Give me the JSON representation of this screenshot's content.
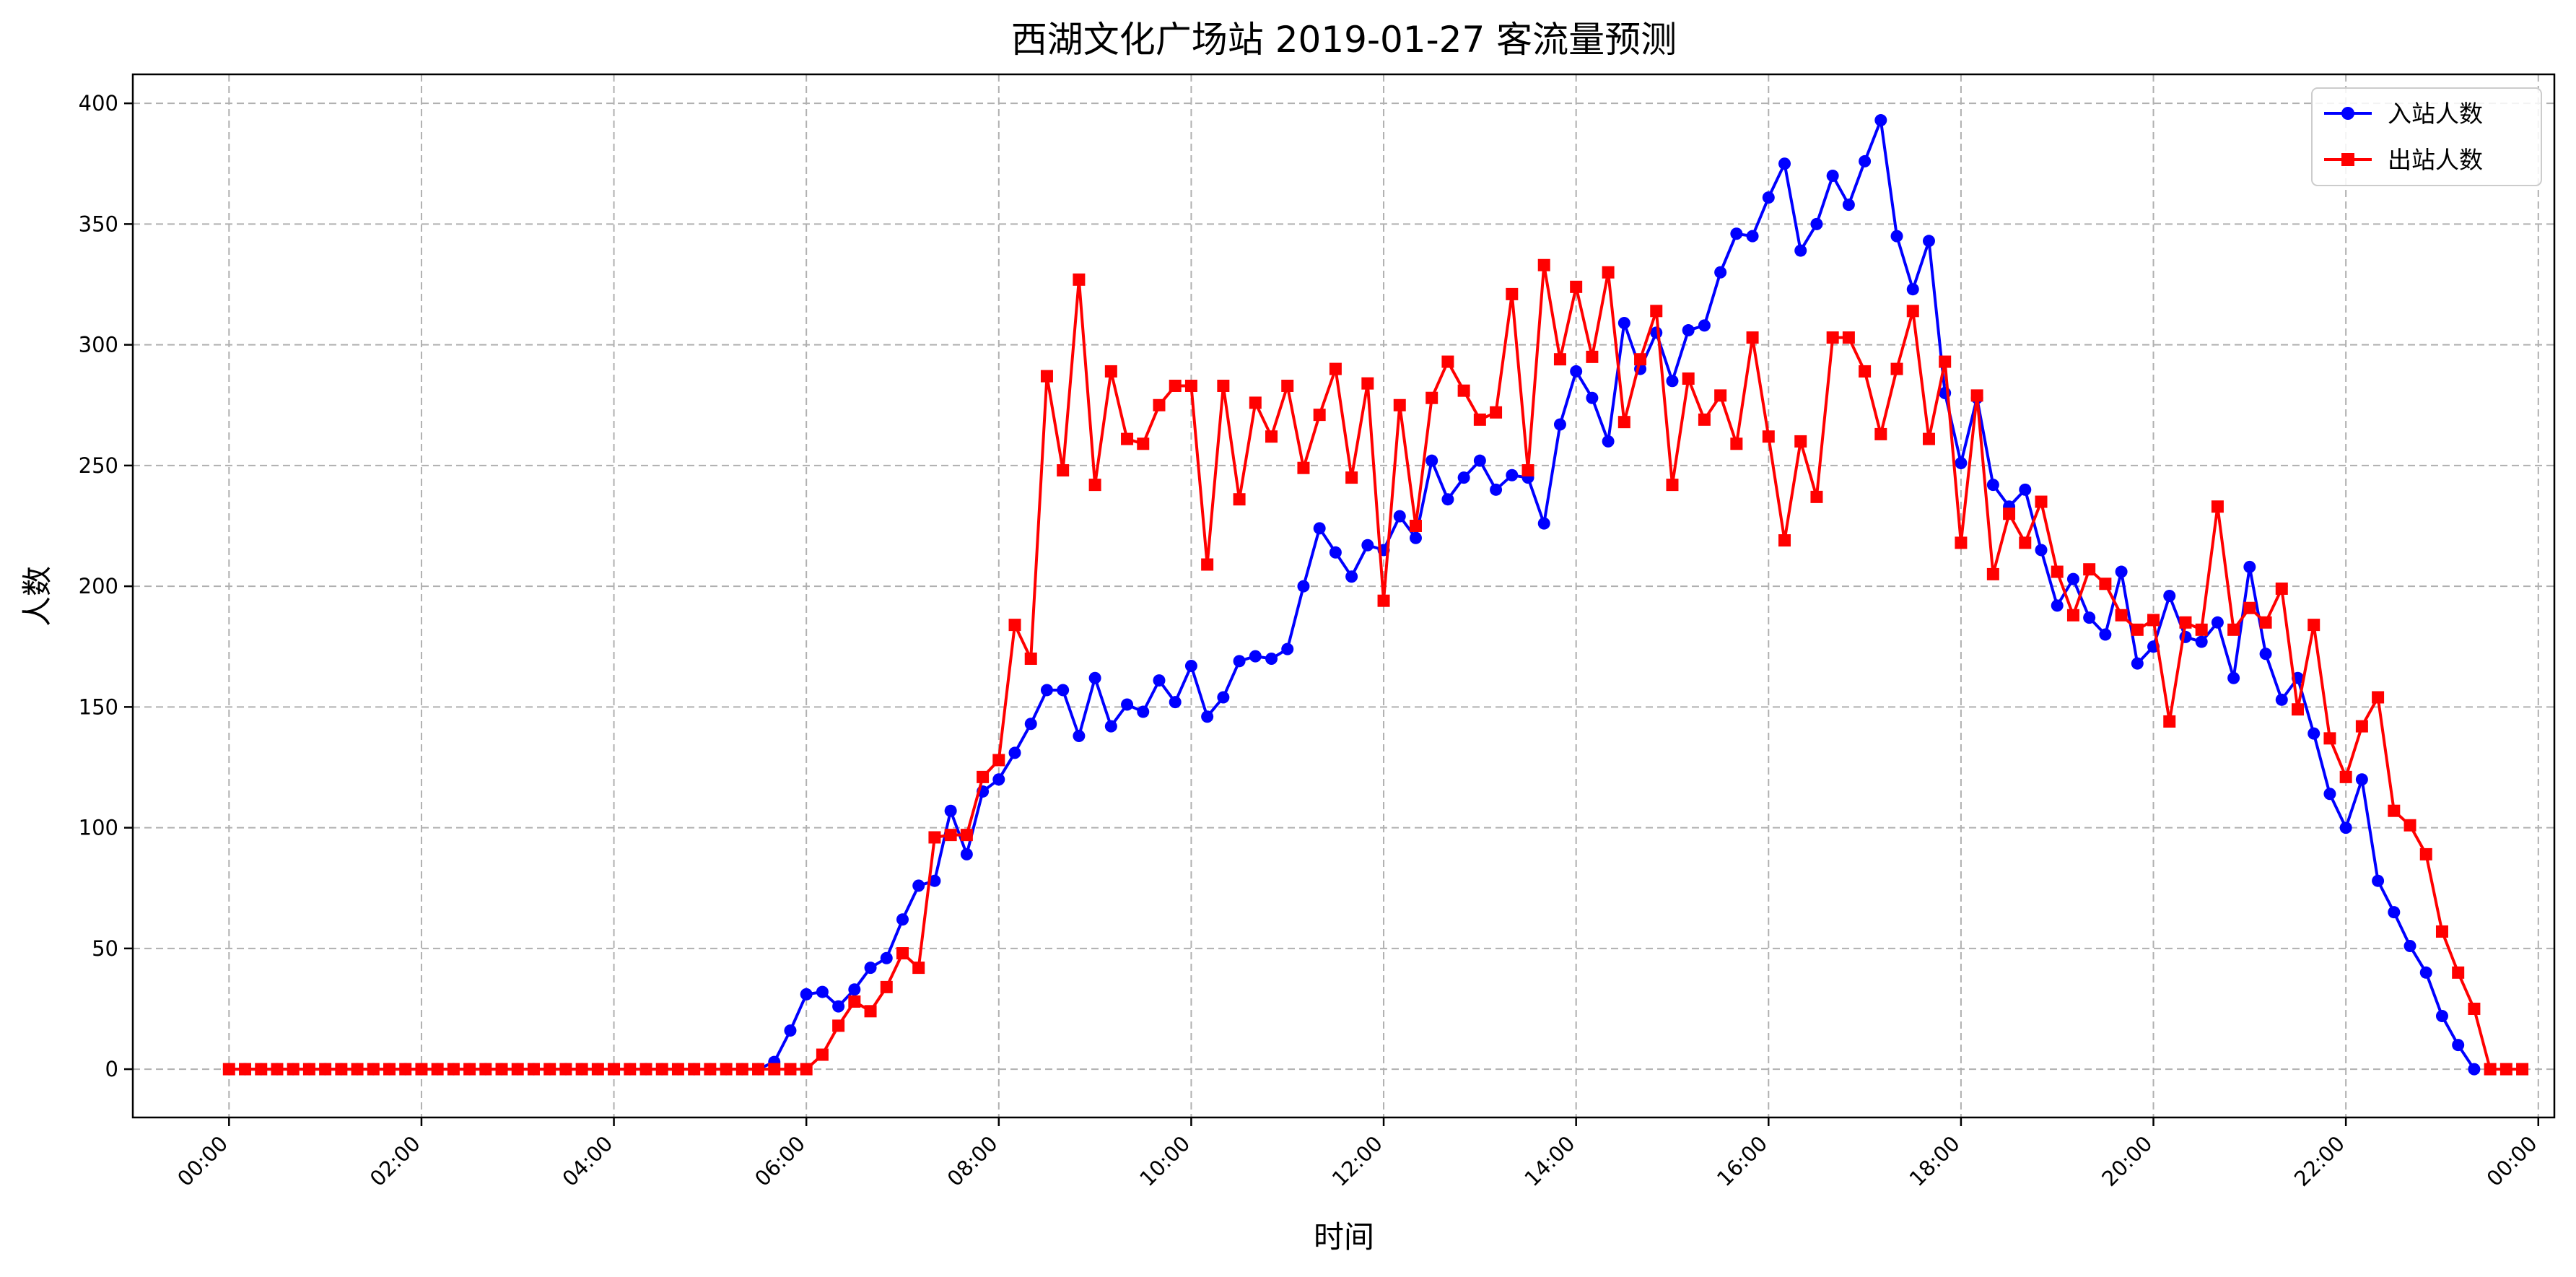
{
  "chart_data": {
    "type": "line",
    "title": "西湖文化广场站 2019-01-27 客流量预测",
    "xlabel": "时间",
    "ylabel": "人数",
    "x_interval_minutes": 10,
    "x_start": "00:00",
    "xlim": [
      "-01:00",
      "24:10"
    ],
    "ylim": [
      -20,
      412
    ],
    "x_tick_labels": [
      "00:00",
      "02:00",
      "04:00",
      "06:00",
      "08:00",
      "10:00",
      "12:00",
      "14:00",
      "16:00",
      "18:00",
      "20:00",
      "22:00",
      "00:00"
    ],
    "y_ticks": [
      0,
      50,
      100,
      150,
      200,
      250,
      300,
      350,
      400
    ],
    "grid": true,
    "legend_position": "top-right",
    "series": [
      {
        "name": "入站人数",
        "color": "#0000ff",
        "marker": "circle",
        "values": [
          0,
          0,
          0,
          0,
          0,
          0,
          0,
          0,
          0,
          0,
          0,
          0,
          0,
          0,
          0,
          0,
          0,
          0,
          0,
          0,
          0,
          0,
          0,
          0,
          0,
          0,
          0,
          0,
          0,
          0,
          0,
          0,
          0,
          0,
          3,
          16,
          31,
          32,
          26,
          33,
          42,
          46,
          62,
          76,
          78,
          107,
          89,
          115,
          120,
          131,
          143,
          157,
          157,
          138,
          162,
          142,
          151,
          148,
          161,
          152,
          167,
          146,
          154,
          169,
          171,
          170,
          174,
          200,
          224,
          214,
          204,
          217,
          215,
          229,
          220,
          252,
          236,
          245,
          252,
          240,
          246,
          245,
          226,
          267,
          289,
          278,
          260,
          309,
          290,
          305,
          285,
          306,
          308,
          330,
          346,
          345,
          361,
          375,
          339,
          350,
          370,
          358,
          376,
          393,
          345,
          323,
          343,
          280,
          251,
          278,
          242,
          233,
          240,
          215,
          192,
          203,
          187,
          180,
          206,
          168,
          175,
          196,
          179,
          177,
          185,
          162,
          208,
          172,
          153,
          162,
          139,
          114,
          100,
          120,
          78,
          65,
          51,
          40,
          22,
          10,
          0
        ]
      },
      {
        "name": "出站人数",
        "color": "#ff0000",
        "marker": "square",
        "values": [
          0,
          0,
          0,
          0,
          0,
          0,
          0,
          0,
          0,
          0,
          0,
          0,
          0,
          0,
          0,
          0,
          0,
          0,
          0,
          0,
          0,
          0,
          0,
          0,
          0,
          0,
          0,
          0,
          0,
          0,
          0,
          0,
          0,
          0,
          0,
          0,
          0,
          6,
          18,
          28,
          24,
          34,
          48,
          42,
          96,
          97,
          97,
          121,
          128,
          184,
          170,
          287,
          248,
          327,
          242,
          289,
          261,
          259,
          275,
          283,
          283,
          209,
          283,
          236,
          276,
          262,
          283,
          249,
          271,
          290,
          245,
          284,
          194,
          275,
          225,
          278,
          293,
          281,
          269,
          272,
          321,
          248,
          333,
          294,
          324,
          295,
          330,
          268,
          294,
          314,
          242,
          286,
          269,
          279,
          259,
          303,
          262,
          219,
          260,
          237,
          303,
          303,
          289,
          263,
          290,
          314,
          261,
          293,
          218,
          279,
          205,
          230,
          218,
          235,
          206,
          188,
          207,
          201,
          188,
          182,
          186,
          144,
          185,
          182,
          233,
          182,
          191,
          185,
          199,
          149,
          184,
          137,
          121,
          142,
          154,
          107,
          101,
          89,
          57,
          40,
          25,
          0,
          0,
          0
        ]
      }
    ]
  }
}
